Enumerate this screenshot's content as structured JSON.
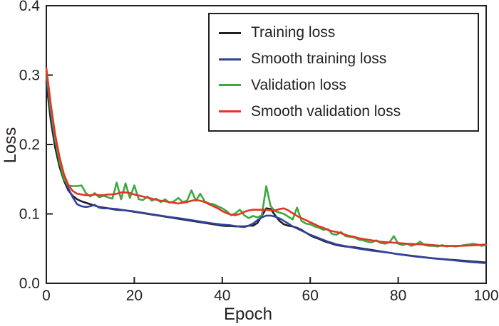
{
  "figure": {
    "background": "#ffffff",
    "ink_color": "#231f20"
  },
  "chart_data": {
    "type": "line",
    "title": "",
    "xlabel": "Epoch",
    "ylabel": "Loss",
    "xlim": [
      0,
      100
    ],
    "ylim": [
      0.0,
      0.4
    ],
    "x_ticks": [
      0,
      20,
      40,
      60,
      80,
      100
    ],
    "y_ticks": [
      "0.0",
      "0.1",
      "0.2",
      "0.3",
      "0.4"
    ],
    "grid": false,
    "legend_position": "top-right",
    "series": [
      {
        "name": "Training loss",
        "color": "#231f20",
        "points": [
          [
            0,
            0.29
          ],
          [
            1,
            0.235
          ],
          [
            2,
            0.196
          ],
          [
            3,
            0.168
          ],
          [
            4,
            0.148
          ],
          [
            5,
            0.134
          ],
          [
            6,
            0.126
          ],
          [
            7,
            0.121
          ],
          [
            8,
            0.118
          ],
          [
            9,
            0.116
          ],
          [
            10,
            0.114
          ],
          [
            11,
            0.112
          ],
          [
            12,
            0.11
          ],
          [
            13,
            0.109
          ],
          [
            14,
            0.108
          ],
          [
            16,
            0.106
          ],
          [
            18,
            0.105
          ],
          [
            20,
            0.103
          ],
          [
            22,
            0.101
          ],
          [
            24,
            0.099
          ],
          [
            26,
            0.097
          ],
          [
            28,
            0.095
          ],
          [
            30,
            0.093
          ],
          [
            32,
            0.091
          ],
          [
            34,
            0.089
          ],
          [
            36,
            0.087
          ],
          [
            38,
            0.085
          ],
          [
            40,
            0.083
          ],
          [
            41,
            0.0825
          ],
          [
            42,
            0.0825
          ],
          [
            43,
            0.082
          ],
          [
            44,
            0.082
          ],
          [
            45,
            0.082
          ],
          [
            46,
            0.083
          ],
          [
            47,
            0.083
          ],
          [
            48,
            0.087
          ],
          [
            49,
            0.097
          ],
          [
            50,
            0.108
          ],
          [
            51,
            0.107
          ],
          [
            52,
            0.098
          ],
          [
            53,
            0.09
          ],
          [
            54,
            0.085
          ],
          [
            55,
            0.083
          ],
          [
            56,
            0.082
          ],
          [
            57,
            0.08
          ],
          [
            58,
            0.077
          ],
          [
            59,
            0.073
          ],
          [
            60,
            0.069
          ],
          [
            61,
            0.066
          ],
          [
            62,
            0.064
          ],
          [
            63,
            0.061
          ],
          [
            64,
            0.059
          ],
          [
            65,
            0.057
          ],
          [
            66,
            0.055
          ],
          [
            68,
            0.053
          ],
          [
            70,
            0.052
          ],
          [
            72,
            0.05
          ],
          [
            74,
            0.048
          ],
          [
            76,
            0.046
          ],
          [
            78,
            0.044
          ],
          [
            80,
            0.042
          ],
          [
            84,
            0.039
          ],
          [
            88,
            0.036
          ],
          [
            92,
            0.034
          ],
          [
            96,
            0.032
          ],
          [
            100,
            0.03
          ]
        ]
      },
      {
        "name": "Smooth training loss",
        "color": "#31439b",
        "points": [
          [
            0,
            0.3
          ],
          [
            1,
            0.245
          ],
          [
            2,
            0.205
          ],
          [
            3,
            0.175
          ],
          [
            4,
            0.152
          ],
          [
            5,
            0.137
          ],
          [
            6,
            0.124
          ],
          [
            7,
            0.114
          ],
          [
            8,
            0.111
          ],
          [
            9,
            0.11
          ],
          [
            10,
            0.111
          ],
          [
            11,
            0.113
          ],
          [
            12,
            0.109
          ],
          [
            13,
            0.108
          ],
          [
            14,
            0.108
          ],
          [
            16,
            0.107
          ],
          [
            18,
            0.105
          ],
          [
            20,
            0.1035
          ],
          [
            22,
            0.1015
          ],
          [
            24,
            0.0995
          ],
          [
            26,
            0.0975
          ],
          [
            28,
            0.0955
          ],
          [
            30,
            0.094
          ],
          [
            32,
            0.092
          ],
          [
            34,
            0.09
          ],
          [
            36,
            0.088
          ],
          [
            38,
            0.086
          ],
          [
            40,
            0.0845
          ],
          [
            41,
            0.084
          ],
          [
            42,
            0.0835
          ],
          [
            43,
            0.0825
          ],
          [
            44,
            0.0815
          ],
          [
            45,
            0.081
          ],
          [
            46,
            0.083
          ],
          [
            47,
            0.086
          ],
          [
            48,
            0.091
          ],
          [
            49,
            0.095
          ],
          [
            50,
            0.0975
          ],
          [
            51,
            0.0975
          ],
          [
            52,
            0.096
          ],
          [
            53,
            0.0935
          ],
          [
            54,
            0.09
          ],
          [
            55,
            0.086
          ],
          [
            56,
            0.082
          ],
          [
            57,
            0.079
          ],
          [
            58,
            0.076
          ],
          [
            59,
            0.073
          ],
          [
            60,
            0.07
          ],
          [
            61,
            0.0675
          ],
          [
            62,
            0.065
          ],
          [
            63,
            0.0625
          ],
          [
            64,
            0.06
          ],
          [
            65,
            0.058
          ],
          [
            66,
            0.056
          ],
          [
            68,
            0.0535
          ],
          [
            70,
            0.051
          ],
          [
            72,
            0.049
          ],
          [
            74,
            0.047
          ],
          [
            76,
            0.0455
          ],
          [
            78,
            0.044
          ],
          [
            80,
            0.042
          ],
          [
            84,
            0.0385
          ],
          [
            88,
            0.036
          ],
          [
            92,
            0.0335
          ],
          [
            96,
            0.031
          ],
          [
            100,
            0.029
          ]
        ]
      },
      {
        "name": "Validation loss",
        "color": "#3ba93f",
        "points": [
          [
            0,
            0.305
          ],
          [
            1,
            0.25
          ],
          [
            2,
            0.208
          ],
          [
            3,
            0.175
          ],
          [
            4,
            0.15
          ],
          [
            5,
            0.141
          ],
          [
            6,
            0.14
          ],
          [
            7,
            0.14
          ],
          [
            8,
            0.141
          ],
          [
            9,
            0.13
          ],
          [
            10,
            0.125
          ],
          [
            11,
            0.13
          ],
          [
            12,
            0.124
          ],
          [
            13,
            0.126
          ],
          [
            14,
            0.124
          ],
          [
            15,
            0.122
          ],
          [
            16,
            0.145
          ],
          [
            17,
            0.121
          ],
          [
            18,
            0.144
          ],
          [
            19,
            0.123
          ],
          [
            20,
            0.141
          ],
          [
            21,
            0.121
          ],
          [
            22,
            0.12
          ],
          [
            23,
            0.125
          ],
          [
            24,
            0.119
          ],
          [
            25,
            0.122
          ],
          [
            26,
            0.117
          ],
          [
            27,
            0.121
          ],
          [
            28,
            0.116
          ],
          [
            29,
            0.118
          ],
          [
            30,
            0.123
          ],
          [
            31,
            0.117
          ],
          [
            32,
            0.119
          ],
          [
            33,
            0.134
          ],
          [
            34,
            0.119
          ],
          [
            35,
            0.129
          ],
          [
            36,
            0.118
          ],
          [
            37,
            0.115
          ],
          [
            38,
            0.114
          ],
          [
            39,
            0.111
          ],
          [
            40,
            0.108
          ],
          [
            41,
            0.104
          ],
          [
            42,
            0.098
          ],
          [
            43,
            0.101
          ],
          [
            44,
            0.106
          ],
          [
            45,
            0.098
          ],
          [
            46,
            0.094
          ],
          [
            47,
            0.097
          ],
          [
            48,
            0.095
          ],
          [
            49,
            0.098
          ],
          [
            50,
            0.14
          ],
          [
            51,
            0.111
          ],
          [
            52,
            0.104
          ],
          [
            53,
            0.102
          ],
          [
            54,
            0.1
          ],
          [
            55,
            0.096
          ],
          [
            56,
            0.092
          ],
          [
            57,
            0.109
          ],
          [
            58,
            0.09
          ],
          [
            59,
            0.086
          ],
          [
            60,
            0.085
          ],
          [
            61,
            0.082
          ],
          [
            62,
            0.08
          ],
          [
            63,
            0.077
          ],
          [
            64,
            0.078
          ],
          [
            65,
            0.071
          ],
          [
            66,
            0.07
          ],
          [
            67,
            0.074
          ],
          [
            68,
            0.068
          ],
          [
            69,
            0.067
          ],
          [
            70,
            0.066
          ],
          [
            71,
            0.063
          ],
          [
            72,
            0.062
          ],
          [
            73,
            0.06
          ],
          [
            74,
            0.059
          ],
          [
            75,
            0.062
          ],
          [
            76,
            0.058
          ],
          [
            77,
            0.057
          ],
          [
            78,
            0.059
          ],
          [
            79,
            0.068
          ],
          [
            80,
            0.057
          ],
          [
            81,
            0.055
          ],
          [
            82,
            0.057
          ],
          [
            83,
            0.054
          ],
          [
            84,
            0.056
          ],
          [
            85,
            0.06
          ],
          [
            86,
            0.055
          ],
          [
            87,
            0.054
          ],
          [
            88,
            0.054
          ],
          [
            89,
            0.053
          ],
          [
            90,
            0.055
          ],
          [
            91,
            0.053
          ],
          [
            92,
            0.054
          ],
          [
            93,
            0.053
          ],
          [
            94,
            0.054
          ],
          [
            95,
            0.055
          ],
          [
            96,
            0.056
          ],
          [
            97,
            0.057
          ],
          [
            98,
            0.056
          ],
          [
            99,
            0.054
          ],
          [
            100,
            0.055
          ]
        ]
      },
      {
        "name": "Smooth validation loss",
        "color": "#e63323",
        "points": [
          [
            0,
            0.31
          ],
          [
            1,
            0.258
          ],
          [
            2,
            0.215
          ],
          [
            3,
            0.182
          ],
          [
            4,
            0.157
          ],
          [
            5,
            0.142
          ],
          [
            6,
            0.133
          ],
          [
            7,
            0.129
          ],
          [
            8,
            0.128
          ],
          [
            9,
            0.127
          ],
          [
            10,
            0.127
          ],
          [
            11,
            0.128
          ],
          [
            12,
            0.127
          ],
          [
            13,
            0.127
          ],
          [
            14,
            0.128
          ],
          [
            15,
            0.128
          ],
          [
            16,
            0.129
          ],
          [
            17,
            0.131
          ],
          [
            18,
            0.131
          ],
          [
            19,
            0.13
          ],
          [
            20,
            0.128
          ],
          [
            22,
            0.125
          ],
          [
            24,
            0.122
          ],
          [
            26,
            0.119
          ],
          [
            28,
            0.117
          ],
          [
            30,
            0.115
          ],
          [
            31,
            0.116
          ],
          [
            32,
            0.117
          ],
          [
            33,
            0.119
          ],
          [
            34,
            0.12
          ],
          [
            35,
            0.119
          ],
          [
            36,
            0.117
          ],
          [
            37,
            0.114
          ],
          [
            38,
            0.111
          ],
          [
            39,
            0.108
          ],
          [
            40,
            0.104
          ],
          [
            41,
            0.101
          ],
          [
            42,
            0.099
          ],
          [
            43,
            0.098
          ],
          [
            44,
            0.1
          ],
          [
            45,
            0.103
          ],
          [
            46,
            0.105
          ],
          [
            47,
            0.106
          ],
          [
            48,
            0.106
          ],
          [
            49,
            0.106
          ],
          [
            50,
            0.106
          ],
          [
            51,
            0.105
          ],
          [
            52,
            0.105
          ],
          [
            53,
            0.107
          ],
          [
            54,
            0.108
          ],
          [
            55,
            0.105
          ],
          [
            56,
            0.101
          ],
          [
            57,
            0.097
          ],
          [
            58,
            0.094
          ],
          [
            59,
            0.091
          ],
          [
            60,
            0.088
          ],
          [
            61,
            0.085
          ],
          [
            62,
            0.082
          ],
          [
            63,
            0.08
          ],
          [
            64,
            0.077
          ],
          [
            65,
            0.075
          ],
          [
            66,
            0.074
          ],
          [
            67,
            0.072
          ],
          [
            68,
            0.07
          ],
          [
            69,
            0.068
          ],
          [
            70,
            0.067
          ],
          [
            71,
            0.065
          ],
          [
            72,
            0.064
          ],
          [
            73,
            0.063
          ],
          [
            74,
            0.062
          ],
          [
            75,
            0.061
          ],
          [
            76,
            0.06
          ],
          [
            78,
            0.059
          ],
          [
            80,
            0.058
          ],
          [
            82,
            0.057
          ],
          [
            84,
            0.0565
          ],
          [
            86,
            0.056
          ],
          [
            88,
            0.055
          ],
          [
            90,
            0.054
          ],
          [
            92,
            0.054
          ],
          [
            94,
            0.054
          ],
          [
            96,
            0.0545
          ],
          [
            98,
            0.055
          ],
          [
            100,
            0.056
          ]
        ]
      }
    ]
  }
}
